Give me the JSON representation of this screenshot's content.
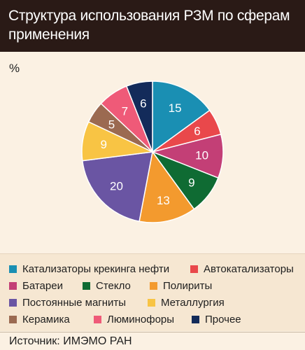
{
  "header": {
    "title": "Структура использования РЗМ по сферам применения"
  },
  "colors": {
    "header_bg": "#2a1a16",
    "page_bg": "#fbf1e3",
    "legend_bg": "#f6e7d2"
  },
  "chart_data": {
    "type": "pie",
    "unit_label": "%",
    "slices": [
      {
        "label": "Катализаторы крекинга нефти",
        "value": 15,
        "color": "#1a8fb3"
      },
      {
        "label": "Автокатализаторы",
        "value": 6,
        "color": "#e9484b"
      },
      {
        "label": "Батареи",
        "value": 10,
        "color": "#c33f76"
      },
      {
        "label": "Стекло",
        "value": 9,
        "color": "#0f6b33"
      },
      {
        "label": "Полириты",
        "value": 13,
        "color": "#f39a2e"
      },
      {
        "label": "Постоянные магниты",
        "value": 20,
        "color": "#6a55a3"
      },
      {
        "label": "Металлургия",
        "value": 9,
        "color": "#f8c444"
      },
      {
        "label": "Керамика",
        "value": 5,
        "color": "#9b6a51"
      },
      {
        "label": "Люминофоры",
        "value": 7,
        "color": "#ef5a78"
      },
      {
        "label": "Прочее",
        "value": 6,
        "color": "#132b5a"
      }
    ],
    "legend_placement": "bottom"
  },
  "footer": {
    "source": "Источник: ИМЭМО РАН"
  }
}
